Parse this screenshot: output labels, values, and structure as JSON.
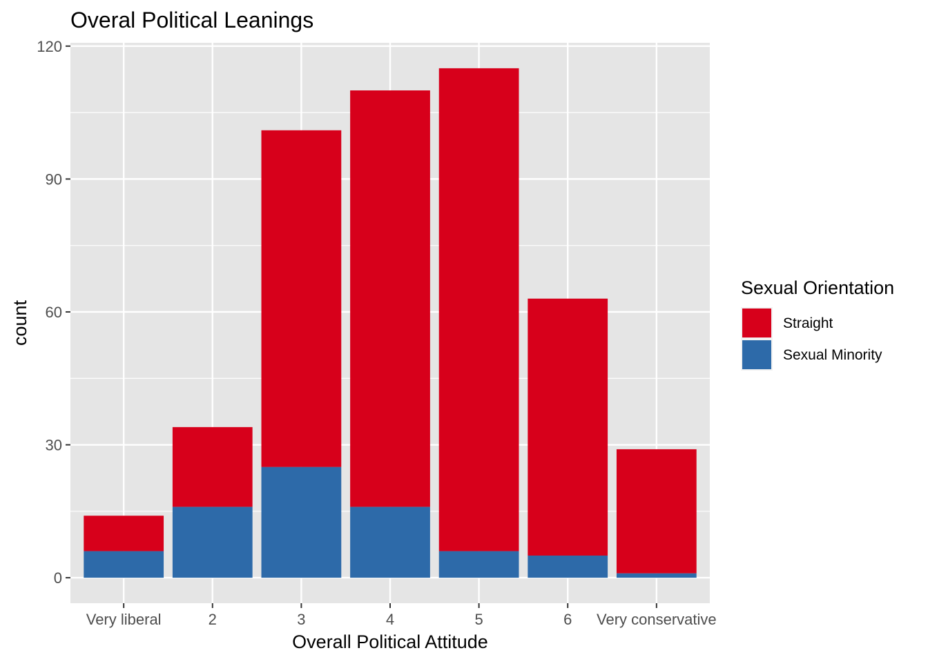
{
  "chart_data": {
    "type": "bar",
    "stacked": true,
    "title": "Overal Political Leanings",
    "xlabel": "Overall Political Attitude",
    "ylabel": "count",
    "categories": [
      "Very liberal",
      "2",
      "3",
      "4",
      "5",
      "6",
      "Very conservative"
    ],
    "series": [
      {
        "name": "Sexual Minority",
        "color": "#2d6aa9",
        "values": [
          6,
          16,
          25,
          16,
          6,
          5,
          1
        ]
      },
      {
        "name": "Straight",
        "color": "#d7001b",
        "values": [
          8,
          18,
          76,
          94,
          109,
          58,
          28
        ]
      }
    ],
    "ylim": [
      -5.75,
      120.75
    ],
    "yticks": [
      0,
      30,
      60,
      90,
      120
    ],
    "grid": true,
    "panel_background": "#e5e5e5",
    "legend": {
      "title": "Sexual Orientation",
      "position": "right",
      "order": [
        "Straight",
        "Sexual Minority"
      ]
    }
  }
}
